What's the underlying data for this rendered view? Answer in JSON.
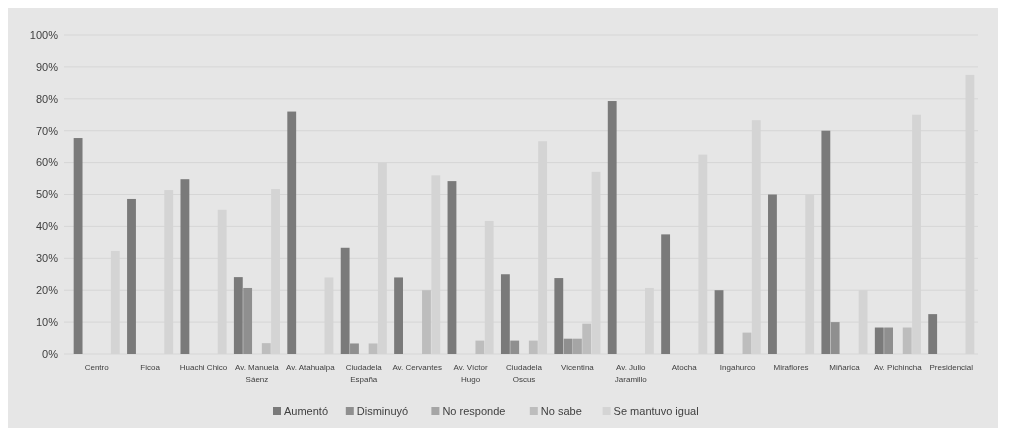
{
  "chart_data": {
    "type": "bar",
    "categories": [
      "Centro",
      "Ficoa",
      "Huachi Chico",
      "Av. Manuela Sáenz",
      "Av. Atahualpa",
      "Ciudadela España",
      "Av. Cervantes",
      "Av. Víctor Hugo",
      "Ciudadela Oscus",
      "Vicentina",
      "Av. Julio Jaramillo",
      "Atocha",
      "Ingahurco",
      "Miraflores",
      "Miñarica",
      "Av. Pichincha",
      "Presidencial"
    ],
    "series": [
      {
        "name": "Aumentó",
        "color": "#7a7a7a",
        "values": [
          67.7,
          48.6,
          54.8,
          24.1,
          76,
          33.3,
          24,
          54.2,
          25,
          23.8,
          79.3,
          37.5,
          20,
          50,
          70,
          8.3,
          12.5
        ]
      },
      {
        "name": "Disminuyó",
        "color": "#8f8f8f",
        "values": [
          0,
          0,
          0,
          20.7,
          0,
          3.3,
          0,
          0,
          4.2,
          4.8,
          0,
          0,
          0,
          0,
          10,
          8.3,
          0
        ]
      },
      {
        "name": "No responde",
        "color": "#a5a5a5",
        "values": [
          0,
          0,
          0,
          0,
          0,
          0,
          0,
          0,
          0,
          4.8,
          0,
          0,
          0,
          0,
          0,
          0,
          0
        ]
      },
      {
        "name": "No sabe",
        "color": "#bdbdbd",
        "values": [
          0,
          0,
          0,
          3.4,
          0,
          3.3,
          20,
          4.2,
          4.2,
          9.5,
          0,
          0,
          6.7,
          0,
          0,
          8.3,
          0
        ]
      },
      {
        "name": "Se mantuvo igual",
        "color": "#d4d4d4",
        "values": [
          32.3,
          51.4,
          45.2,
          51.7,
          24,
          60,
          56,
          41.7,
          66.7,
          57.1,
          20.7,
          62.5,
          73.3,
          50,
          20,
          75,
          87.5
        ]
      }
    ],
    "ylim": [
      0,
      100
    ],
    "yticks": [
      {
        "value": 0,
        "label": "0%"
      },
      {
        "value": 10,
        "label": "10%"
      },
      {
        "value": 20,
        "label": "20%"
      },
      {
        "value": 30,
        "label": "30%"
      },
      {
        "value": 40,
        "label": "40%"
      },
      {
        "value": 50,
        "label": "50%"
      },
      {
        "value": 60,
        "label": "60%"
      },
      {
        "value": 70,
        "label": "70%"
      },
      {
        "value": 80,
        "label": "80%"
      },
      {
        "value": 90,
        "label": "90%"
      },
      {
        "value": 100,
        "label": "100%"
      }
    ],
    "grid": "y",
    "legend": "bottom"
  }
}
